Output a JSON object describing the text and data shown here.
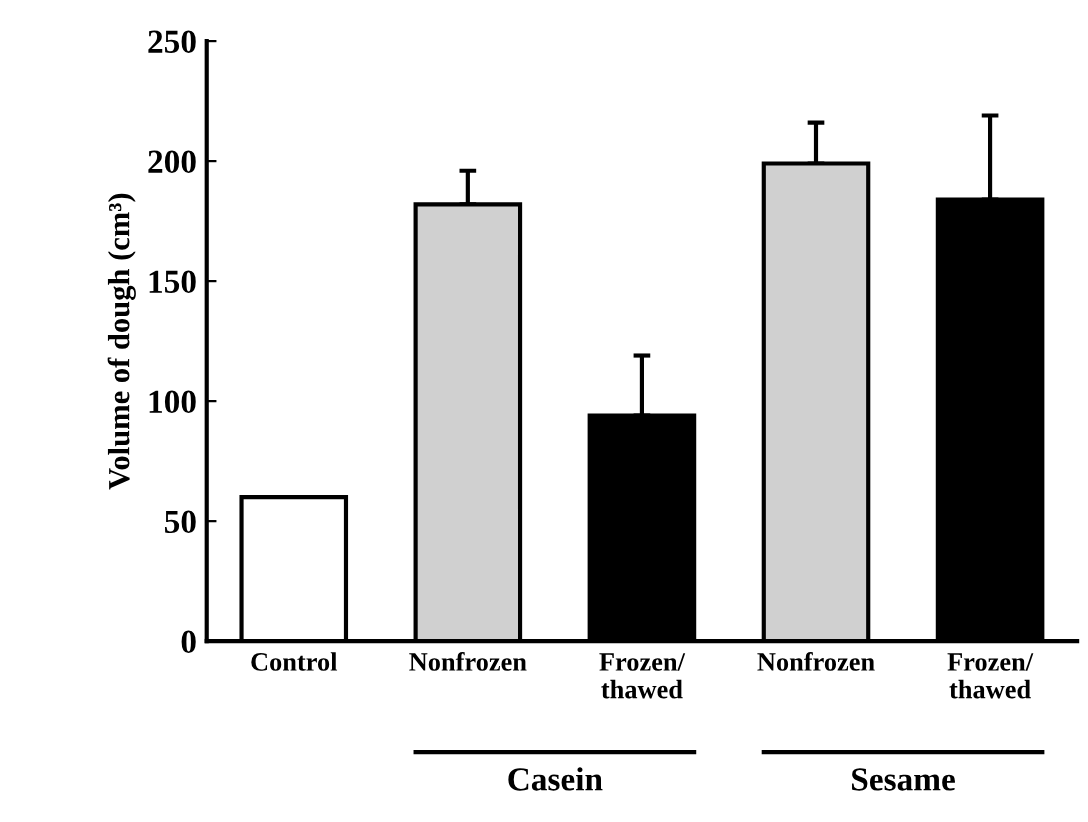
{
  "chart_data": {
    "type": "bar",
    "ylabel": "Volume of dough (cm³)",
    "categories": [
      "Control",
      "Nonfrozen",
      "Frozen/\nthawed",
      "Nonfrozen",
      "Frozen/\nthawed"
    ],
    "values": [
      60,
      182,
      94,
      199,
      184
    ],
    "errors": [
      null,
      [
        182,
        196
      ],
      [
        94,
        119
      ],
      [
        199,
        216
      ],
      [
        184,
        219
      ]
    ],
    "colors": [
      "#ffffff",
      "#d0d0d0",
      "#000000",
      "#d0d0d0",
      "#000000"
    ],
    "ylim": [
      0,
      250
    ],
    "yticks": [
      0,
      50,
      100,
      150,
      200,
      250
    ],
    "grid": false,
    "legend": false,
    "annotations": [
      "Casein",
      "Sesame"
    ]
  }
}
